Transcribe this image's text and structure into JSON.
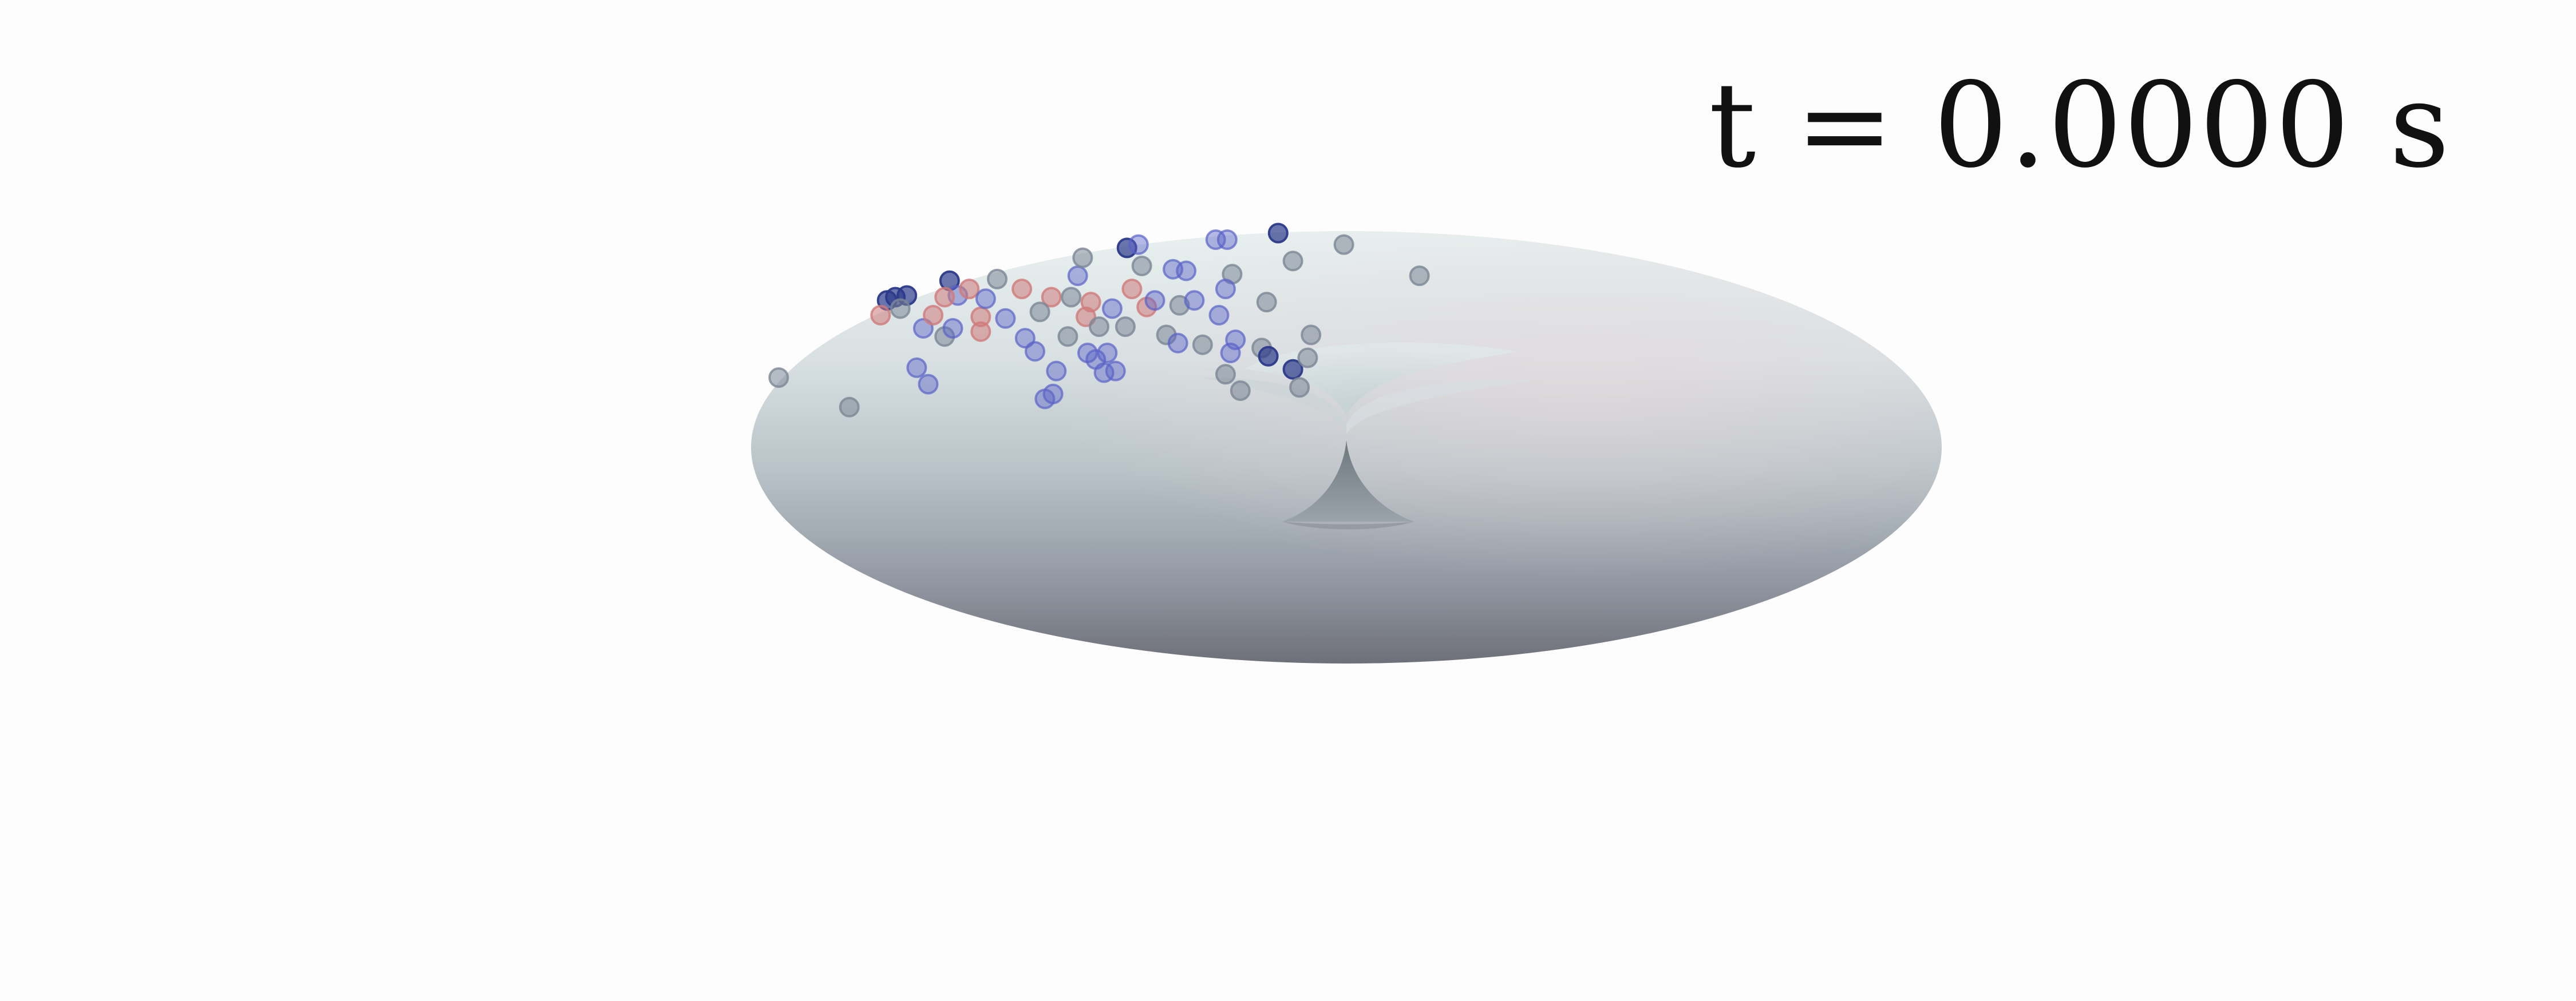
{
  "time_label": "t = 0.0000 s",
  "colors": {
    "background": "#fdfdfd",
    "torus_light": "#e6eeee",
    "torus_mid": "#b7c1c6",
    "torus_dark": "#6f727a",
    "torus_hole": "#8e979c",
    "particle_blue": "#5a63c8",
    "particle_dark_blue": "#2c3a8a",
    "particle_red": "#d07a7a",
    "particle_gray": "#7c8796"
  }
}
